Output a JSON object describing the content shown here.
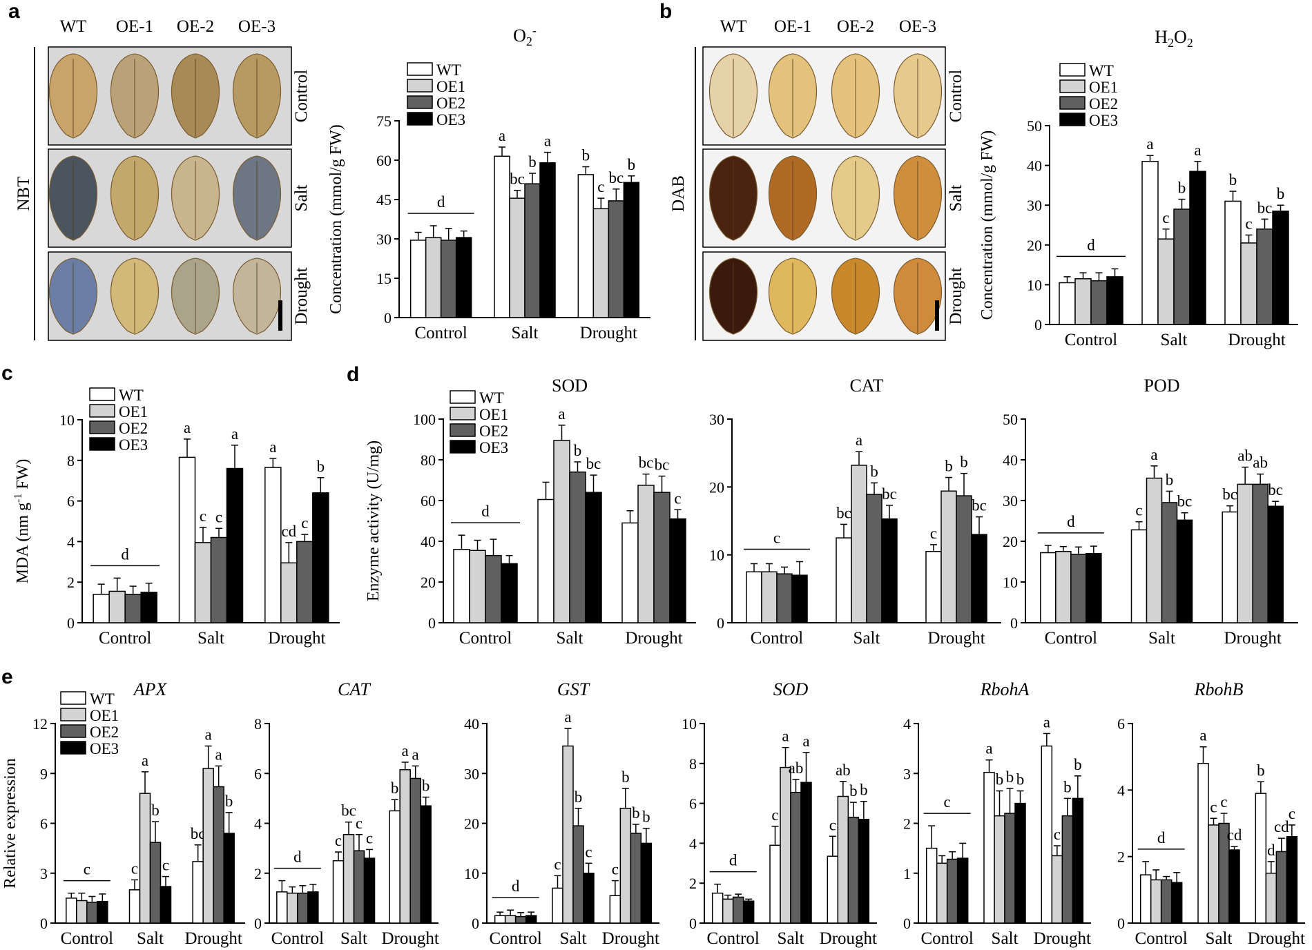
{
  "panels": {
    "a": {
      "label": "a",
      "columns": [
        "WT",
        "OE-1",
        "OE-2",
        "OE-3"
      ],
      "rows": [
        "Control",
        "Salt",
        "Drought"
      ],
      "stain": "NBT"
    },
    "b": {
      "label": "b",
      "columns": [
        "WT",
        "OE-1",
        "OE-2",
        "OE-3"
      ],
      "rows": [
        "Control",
        "Salt",
        "Drought"
      ],
      "stain": "DAB"
    },
    "c": {
      "label": "c"
    },
    "d": {
      "label": "d"
    },
    "e": {
      "label": "e"
    }
  },
  "leaf_colors": {
    "nbt_bg": "#d8d8d8",
    "dab_bg": "#f3f3f3",
    "nbt": [
      [
        "#c9a46a",
        "#b9a178",
        "#a88a57",
        "#b69a62"
      ],
      [
        "#4a5560",
        "#c3a86b",
        "#c8b58d",
        "#6d7683"
      ],
      [
        "#6b7fa6",
        "#d0b979",
        "#a9a48a",
        "#c1b59b"
      ]
    ],
    "dab": [
      [
        "#e6d2a8",
        "#e3c27c",
        "#e5c27e",
        "#e6c98c"
      ],
      [
        "#4a2410",
        "#b06a24",
        "#e4cb8b",
        "#cf8e3c"
      ],
      [
        "#3a1a0c",
        "#dfb85e",
        "#c9882c",
        "#cf8a3b"
      ]
    ]
  },
  "legend": [
    "WT",
    "OE1",
    "OE2",
    "OE3"
  ],
  "bar_colors": [
    "#ffffff",
    "#d3d3d3",
    "#606060",
    "#000000"
  ],
  "chart_data": [
    {
      "id": "a",
      "type": "bar",
      "title": "O2-",
      "ylabel": "Concentration (mmol/g FW)",
      "ylim": [
        0,
        75
      ],
      "yticks": [
        0,
        15,
        30,
        45,
        60,
        75
      ],
      "categories": [
        "Control",
        "Salt",
        "Drought"
      ],
      "legend_position": "top-left",
      "series": [
        {
          "name": "WT",
          "values": [
            29.5,
            61.5,
            54.5
          ],
          "errors": [
            3,
            3.5,
            3
          ]
        },
        {
          "name": "OE1",
          "values": [
            30.5,
            45.5,
            41.5
          ],
          "errors": [
            4.5,
            3,
            4
          ]
        },
        {
          "name": "OE2",
          "values": [
            29.5,
            51,
            44.5
          ],
          "errors": [
            4.5,
            4,
            4.5
          ]
        },
        {
          "name": "OE3",
          "values": [
            30.5,
            59,
            51.5
          ],
          "errors": [
            2.5,
            4,
            2.5
          ]
        }
      ],
      "letters": [
        [
          "",
          "",
          "",
          ""
        ],
        [
          "a",
          "bc",
          "b",
          "a"
        ],
        [
          "b",
          "c",
          "bc",
          "b"
        ]
      ],
      "group_letter": "d"
    },
    {
      "id": "b",
      "type": "bar",
      "title": "H2O2",
      "ylabel": "Concentration (mmol/g FW)",
      "ylim": [
        0,
        50
      ],
      "yticks": [
        0,
        10,
        20,
        30,
        40,
        50
      ],
      "categories": [
        "Control",
        "Salt",
        "Drought"
      ],
      "legend_position": "top-left",
      "series": [
        {
          "name": "WT",
          "values": [
            10.5,
            41,
            31
          ],
          "errors": [
            1.5,
            1.5,
            2.5
          ]
        },
        {
          "name": "OE1",
          "values": [
            11.5,
            21.5,
            20.5
          ],
          "errors": [
            1.5,
            2.5,
            2
          ]
        },
        {
          "name": "OE2",
          "values": [
            11,
            29,
            24
          ],
          "errors": [
            2,
            2.5,
            2.5
          ]
        },
        {
          "name": "OE3",
          "values": [
            12,
            38.5,
            28.5
          ],
          "errors": [
            2,
            2.5,
            1.5
          ]
        }
      ],
      "letters": [
        [
          "",
          "",
          "",
          ""
        ],
        [
          "a",
          "c",
          "b",
          "a"
        ],
        [
          "b",
          "c",
          "bc",
          "b"
        ]
      ],
      "group_letter": "d"
    },
    {
      "id": "c",
      "type": "bar",
      "ylabel": "MDA (nm g-1 FW)",
      "ylim": [
        0,
        10
      ],
      "yticks": [
        0,
        2,
        4,
        6,
        8,
        10
      ],
      "categories": [
        "Control",
        "Salt",
        "Drought"
      ],
      "legend_position": "top-left",
      "series": [
        {
          "name": "WT",
          "values": [
            1.4,
            8.15,
            7.65
          ],
          "errors": [
            0.5,
            0.9,
            0.45
          ]
        },
        {
          "name": "OE1",
          "values": [
            1.55,
            3.95,
            2.95
          ],
          "errors": [
            0.65,
            0.75,
            1
          ]
        },
        {
          "name": "OE2",
          "values": [
            1.4,
            4.2,
            4
          ],
          "errors": [
            0.4,
            0.45,
            0.35
          ]
        },
        {
          "name": "OE3",
          "values": [
            1.5,
            7.6,
            6.4
          ],
          "errors": [
            0.45,
            1.15,
            0.75
          ]
        }
      ],
      "letters": [
        [
          "",
          "",
          "",
          ""
        ],
        [
          "a",
          "c",
          "c",
          "a"
        ],
        [
          "a",
          "cd",
          "c",
          "b"
        ]
      ],
      "group_letter": "d"
    },
    {
      "id": "d1",
      "type": "bar",
      "title": "SOD",
      "ylabel": "Enzyme activity (U/mg)",
      "ylim": [
        0,
        100
      ],
      "yticks": [
        0,
        20,
        40,
        60,
        80,
        100
      ],
      "categories": [
        "Control",
        "Salt",
        "Drought"
      ],
      "legend_position": "top-left",
      "series": [
        {
          "name": "WT",
          "values": [
            36,
            60.5,
            49
          ],
          "errors": [
            7,
            8.5,
            6
          ]
        },
        {
          "name": "OE1",
          "values": [
            35.5,
            89.5,
            67.5
          ],
          "errors": [
            5,
            7.5,
            5.5
          ]
        },
        {
          "name": "OE2",
          "values": [
            33,
            74,
            64
          ],
          "errors": [
            8,
            5,
            8
          ]
        },
        {
          "name": "OE3",
          "values": [
            29,
            64,
            51
          ],
          "errors": [
            4,
            8.5,
            4.5
          ]
        }
      ],
      "letters": [
        [
          "",
          "",
          "",
          ""
        ],
        [
          "",
          "a",
          "b",
          "bc"
        ],
        [
          "",
          "bc",
          "bc",
          "c"
        ]
      ],
      "group_letter": "d"
    },
    {
      "id": "d2",
      "type": "bar",
      "title": "CAT",
      "ylim": [
        0,
        30
      ],
      "yticks": [
        0,
        10,
        20,
        30
      ],
      "categories": [
        "Control",
        "Salt",
        "Drought"
      ],
      "series": [
        {
          "name": "WT",
          "values": [
            7.5,
            12.5,
            10.5
          ],
          "errors": [
            1.2,
            2,
            1
          ]
        },
        {
          "name": "OE1",
          "values": [
            7.5,
            23.2,
            19.4
          ],
          "errors": [
            1.2,
            2,
            2
          ]
        },
        {
          "name": "OE2",
          "values": [
            7.2,
            18.9,
            18.7
          ],
          "errors": [
            1,
            1.7,
            3.3
          ]
        },
        {
          "name": "OE3",
          "values": [
            7,
            15.3,
            13
          ],
          "errors": [
            2,
            2,
            2.6
          ]
        }
      ],
      "letters": [
        [
          "",
          "",
          "",
          ""
        ],
        [
          "bc",
          "a",
          "b",
          "bc"
        ],
        [
          "c",
          "b",
          "b",
          "bc"
        ]
      ],
      "group_letter": "c"
    },
    {
      "id": "d3",
      "type": "bar",
      "title": "POD",
      "ylim": [
        0,
        50
      ],
      "yticks": [
        0,
        10,
        20,
        30,
        40,
        50
      ],
      "categories": [
        "Control",
        "Salt",
        "Drought"
      ],
      "series": [
        {
          "name": "WT",
          "values": [
            17.2,
            22.8,
            27.2
          ],
          "errors": [
            1.8,
            2,
            1.5
          ]
        },
        {
          "name": "OE1",
          "values": [
            17.5,
            35.5,
            34
          ],
          "errors": [
            1.2,
            3,
            4.2
          ]
        },
        {
          "name": "OE2",
          "values": [
            16.8,
            29.5,
            34
          ],
          "errors": [
            1.8,
            2.8,
            2.5
          ]
        },
        {
          "name": "OE3",
          "values": [
            17,
            25.2,
            28.6
          ],
          "errors": [
            1.8,
            1.8,
            1.2
          ]
        }
      ],
      "letters": [
        [
          "",
          "",
          "",
          ""
        ],
        [
          "c",
          "a",
          "b",
          "bc"
        ],
        [
          "bc",
          "ab",
          "ab",
          "bc"
        ]
      ],
      "group_letter": "d"
    },
    {
      "id": "e1",
      "type": "bar",
      "title": "APX",
      "title_italic": true,
      "ylabel": "Relative expression",
      "ylim": [
        0,
        12
      ],
      "yticks": [
        0,
        3,
        6,
        9,
        12
      ],
      "categories": [
        "Control",
        "Salt",
        "Drought"
      ],
      "legend_position": "top-left",
      "series": [
        {
          "name": "WT",
          "values": [
            1.5,
            2,
            3.7
          ],
          "errors": [
            0.3,
            0.6,
            1
          ]
        },
        {
          "name": "OE1",
          "values": [
            1.35,
            7.8,
            9.3
          ],
          "errors": [
            0.45,
            1.3,
            1.35
          ]
        },
        {
          "name": "OE2",
          "values": [
            1.25,
            4.85,
            8.2
          ],
          "errors": [
            0.35,
            1.25,
            1.25
          ]
        },
        {
          "name": "OE3",
          "values": [
            1.3,
            2.2,
            5.4
          ],
          "errors": [
            0.45,
            0.6,
            1.25
          ]
        }
      ],
      "letters": [
        [
          "",
          "",
          "",
          ""
        ],
        [
          "c",
          "a",
          "b",
          "c"
        ],
        [
          "bc",
          "a",
          "a",
          "b"
        ]
      ],
      "group_letter": "c"
    },
    {
      "id": "e2",
      "type": "bar",
      "title": "CAT",
      "title_italic": true,
      "ylim": [
        0,
        8
      ],
      "yticks": [
        0,
        2,
        4,
        6,
        8
      ],
      "categories": [
        "Control",
        "Salt",
        "Drought"
      ],
      "series": [
        {
          "name": "WT",
          "values": [
            1.25,
            2.5,
            4.5
          ],
          "errors": [
            0.45,
            0.35,
            0.45
          ]
        },
        {
          "name": "OE1",
          "values": [
            1.2,
            3.55,
            6.15
          ],
          "errors": [
            0.25,
            0.5,
            0.3
          ]
        },
        {
          "name": "OE2",
          "values": [
            1.2,
            2.9,
            5.8
          ],
          "errors": [
            0.3,
            0.65,
            0.5
          ]
        },
        {
          "name": "OE3",
          "values": [
            1.25,
            2.6,
            4.7
          ],
          "errors": [
            0.3,
            0.35,
            0.35
          ]
        }
      ],
      "letters": [
        [
          "",
          "",
          "",
          ""
        ],
        [
          "c",
          "bc",
          "c",
          "c"
        ],
        [
          "b",
          "a",
          "a",
          "b"
        ]
      ],
      "group_letter": "d"
    },
    {
      "id": "e3",
      "type": "bar",
      "title": "GST",
      "title_italic": true,
      "ylim": [
        0,
        40
      ],
      "yticks": [
        0,
        10,
        20,
        30,
        40
      ],
      "categories": [
        "Control",
        "Salt",
        "Drought"
      ],
      "series": [
        {
          "name": "WT",
          "values": [
            1.5,
            7,
            5.5
          ],
          "errors": [
            0.7,
            2.5,
            3
          ]
        },
        {
          "name": "OE1",
          "values": [
            1.5,
            35.5,
            23
          ],
          "errors": [
            1.1,
            3.5,
            4
          ]
        },
        {
          "name": "OE2",
          "values": [
            1.3,
            19.5,
            18
          ],
          "errors": [
            0.8,
            3.5,
            1.8
          ]
        },
        {
          "name": "OE3",
          "values": [
            1.5,
            10,
            16
          ],
          "errors": [
            0.7,
            2,
            3
          ]
        }
      ],
      "letters": [
        [
          "",
          "",
          "",
          ""
        ],
        [
          "c",
          "a",
          "b",
          "c"
        ],
        [
          "c",
          "b",
          "b",
          "b"
        ]
      ],
      "group_letter": "d"
    },
    {
      "id": "e4",
      "type": "bar",
      "title": "SOD",
      "title_italic": true,
      "ylim": [
        0,
        10
      ],
      "yticks": [
        0,
        2,
        4,
        6,
        8,
        10
      ],
      "categories": [
        "Control",
        "Salt",
        "Drought"
      ],
      "series": [
        {
          "name": "WT",
          "values": [
            1.5,
            3.9,
            3.35
          ],
          "errors": [
            0.45,
            0.95,
            1
          ]
        },
        {
          "name": "OE1",
          "values": [
            1.2,
            7.8,
            6.35
          ],
          "errors": [
            0.2,
            1,
            0.75
          ]
        },
        {
          "name": "OE2",
          "values": [
            1.3,
            6.55,
            5.3
          ],
          "errors": [
            0.15,
            0.65,
            0.75
          ]
        },
        {
          "name": "OE3",
          "values": [
            1.1,
            7.05,
            5.2
          ],
          "errors": [
            0.1,
            1.5,
            0.9
          ]
        }
      ],
      "letters": [
        [
          "",
          "",
          "",
          ""
        ],
        [
          "c",
          "a",
          "ab",
          "a"
        ],
        [
          "c",
          "ab",
          "b",
          "b"
        ]
      ],
      "group_letter": "d"
    },
    {
      "id": "e5",
      "type": "bar",
      "title": "RbohA",
      "title_italic": true,
      "ylim": [
        0,
        4
      ],
      "yticks": [
        0,
        1,
        2,
        3,
        4
      ],
      "categories": [
        "Control",
        "Salt",
        "Drought"
      ],
      "series": [
        {
          "name": "WT",
          "values": [
            1.5,
            3.02,
            3.55
          ],
          "errors": [
            0.45,
            0.25,
            0.25
          ]
        },
        {
          "name": "OE1",
          "values": [
            1.2,
            2.15,
            1.35
          ],
          "errors": [
            0.15,
            0.5,
            0.2
          ]
        },
        {
          "name": "OE2",
          "values": [
            1.28,
            2.2,
            2.15
          ],
          "errors": [
            0.15,
            0.5,
            0.35
          ]
        },
        {
          "name": "OE3",
          "values": [
            1.3,
            2.4,
            2.5
          ],
          "errors": [
            0.3,
            0.25,
            0.45
          ]
        }
      ],
      "letters": [
        [
          "",
          "",
          "",
          ""
        ],
        [
          "a",
          "b",
          "b",
          "b"
        ],
        [
          "a",
          "c",
          "b",
          "b"
        ]
      ],
      "group_letter": "c"
    },
    {
      "id": "e6",
      "type": "bar",
      "title": "RbohB",
      "title_italic": true,
      "ylim": [
        0,
        6
      ],
      "yticks": [
        0,
        2,
        4,
        6
      ],
      "categories": [
        "Control",
        "Salt",
        "Drought"
      ],
      "series": [
        {
          "name": "WT",
          "values": [
            1.45,
            4.8,
            3.9
          ],
          "errors": [
            0.4,
            0.5,
            0.35
          ]
        },
        {
          "name": "OE1",
          "values": [
            1.3,
            2.95,
            1.5
          ],
          "errors": [
            0.3,
            0.2,
            0.35
          ]
        },
        {
          "name": "OE2",
          "values": [
            1.3,
            3,
            2.15
          ],
          "errors": [
            0.1,
            0.3,
            0.4
          ]
        },
        {
          "name": "OE3",
          "values": [
            1.22,
            2.2,
            2.6
          ],
          "errors": [
            0.3,
            0.1,
            0.35
          ]
        }
      ],
      "letters": [
        [
          "",
          "",
          "",
          ""
        ],
        [
          "a",
          "c",
          "c",
          "cd"
        ],
        [
          "b",
          "d",
          "cd",
          "c"
        ]
      ],
      "group_letter": "d"
    }
  ]
}
